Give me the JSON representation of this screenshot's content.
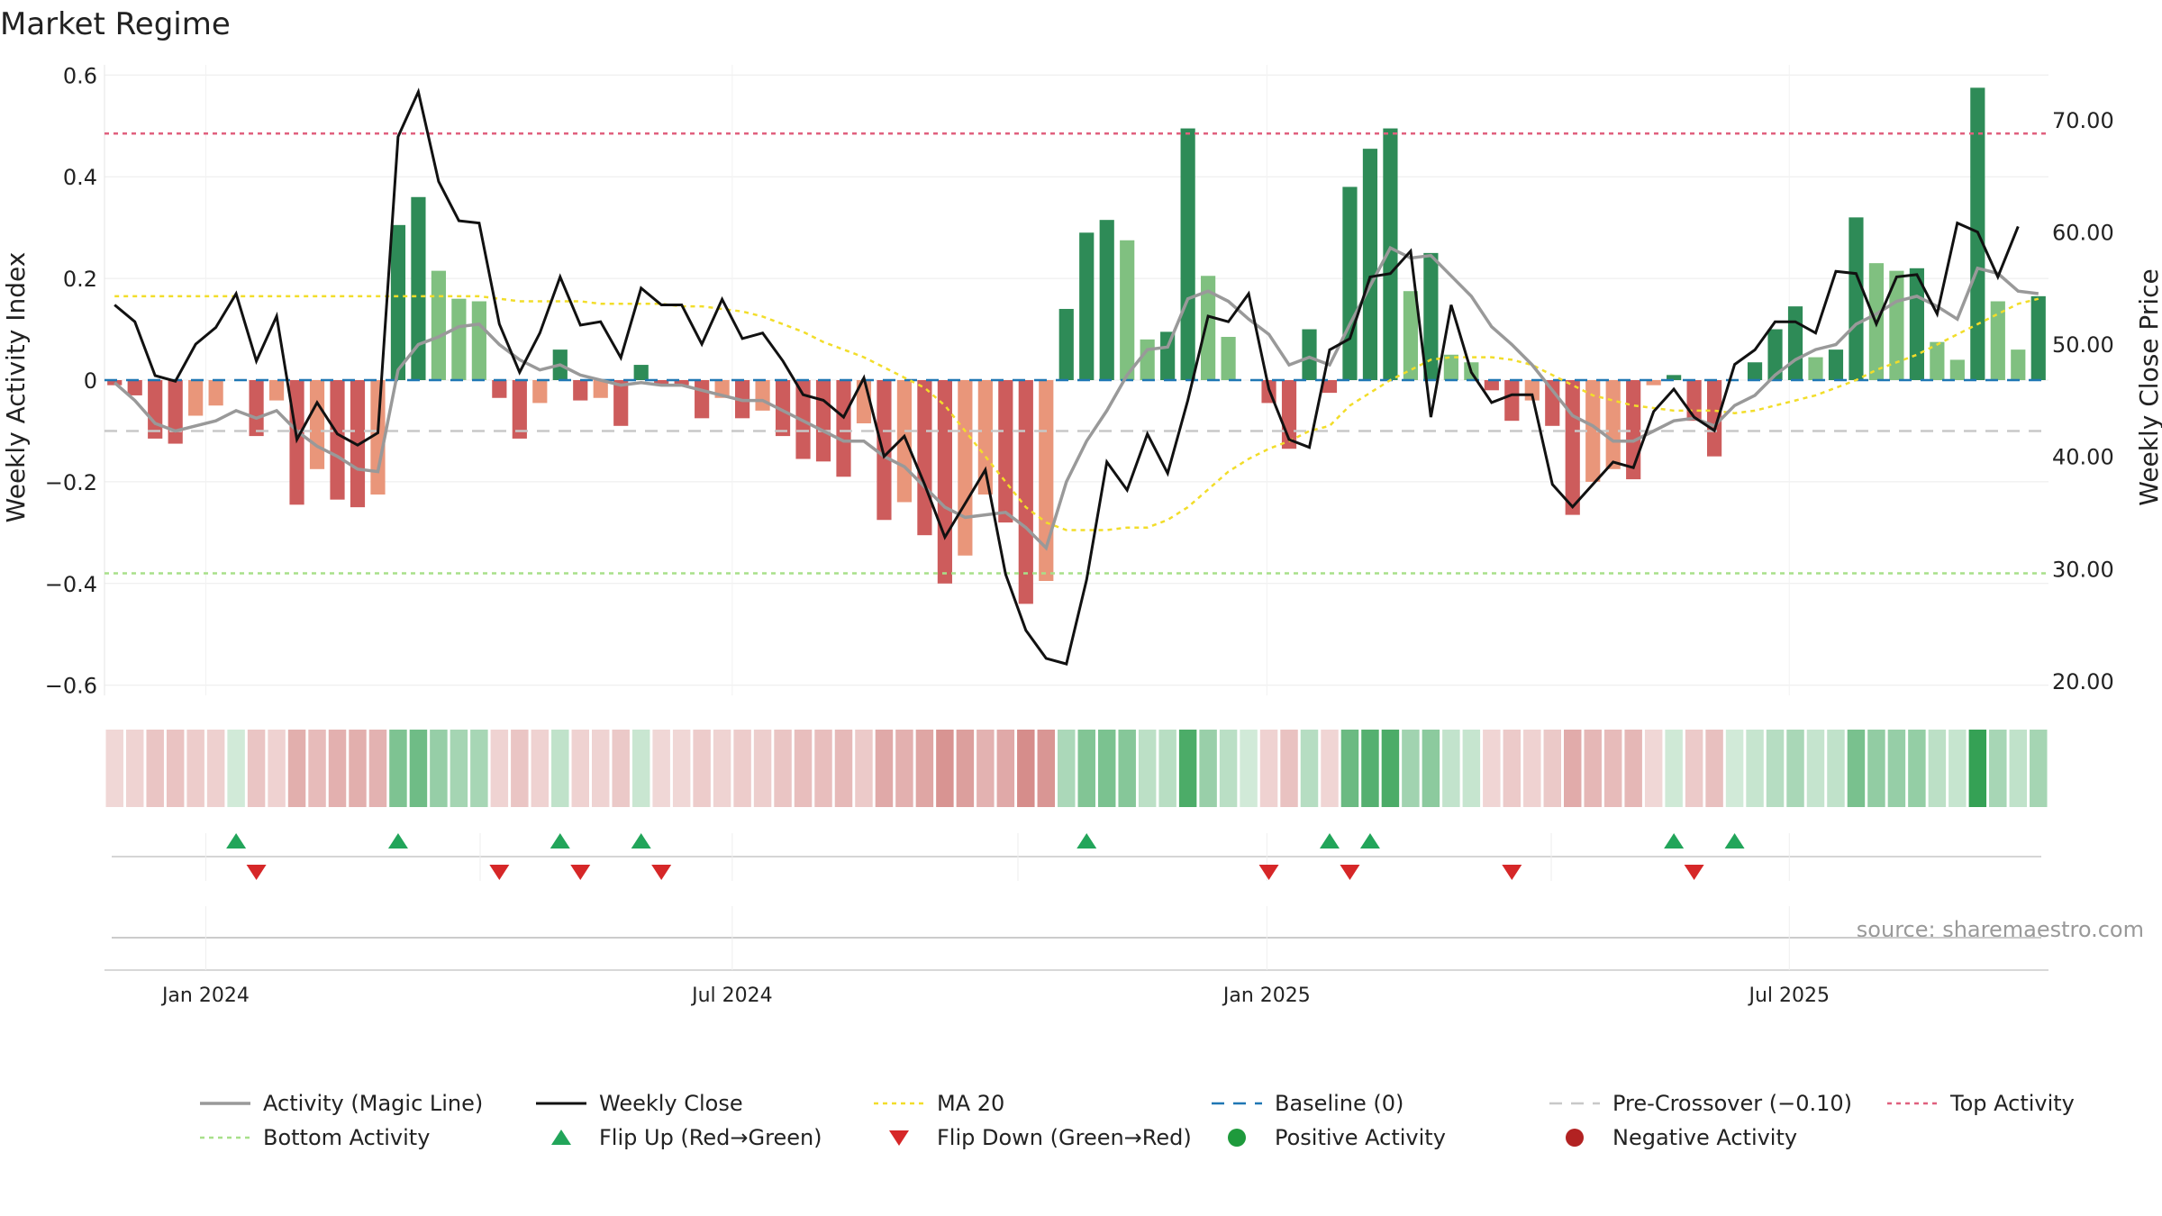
{
  "chart_data": {
    "type": "bar",
    "title": "Market Regime",
    "ylabel_left": "Weekly Activity Index",
    "ylabel_right": "Weekly Close Price",
    "source": "source: sharemaestro.com",
    "ylim_left": [
      -0.62,
      0.62
    ],
    "ylim_right": [
      18.7,
      74.9
    ],
    "yticks_left": [
      {
        "value": 0.6,
        "label": "0.6"
      },
      {
        "value": 0.4,
        "label": "0.4"
      },
      {
        "value": 0.2,
        "label": "0.2"
      },
      {
        "value": 0,
        "label": "0"
      },
      {
        "value": -0.2,
        "label": "−0.2"
      },
      {
        "value": -0.4,
        "label": "−0.4"
      },
      {
        "value": -0.6,
        "label": "−0.6"
      }
    ],
    "yticks_right": [
      {
        "value": 70,
        "label": "70.00"
      },
      {
        "value": 60,
        "label": "60.00"
      },
      {
        "value": 50,
        "label": "50.00"
      },
      {
        "value": 40,
        "label": "40.00"
      },
      {
        "value": 30,
        "label": "30.00"
      },
      {
        "value": 20,
        "label": "20.00"
      }
    ],
    "xticks": [
      {
        "week": 5,
        "label": "Jan 2024"
      },
      {
        "week": 31,
        "label": "Jul 2024"
      },
      {
        "week": 57.4,
        "label": "Jan 2025"
      },
      {
        "week": 83.2,
        "label": "Jul 2025"
      }
    ],
    "reference_lines": {
      "top_activity": 0.485,
      "bottom_activity": -0.38,
      "baseline": 0,
      "pre_crossover": -0.1
    },
    "activity": [
      -0.01,
      -0.03,
      -0.115,
      -0.125,
      -0.07,
      -0.05,
      0,
      -0.11,
      -0.04,
      -0.245,
      -0.175,
      -0.235,
      -0.25,
      -0.225,
      0.305,
      0.36,
      0.215,
      0.16,
      0.155,
      -0.035,
      -0.115,
      -0.045,
      0.06,
      -0.04,
      -0.035,
      -0.09,
      0.03,
      -0.01,
      -0.01,
      -0.075,
      -0.035,
      -0.075,
      -0.06,
      -0.11,
      -0.155,
      -0.16,
      -0.19,
      -0.085,
      -0.275,
      -0.24,
      -0.305,
      -0.4,
      -0.345,
      -0.225,
      -0.28,
      -0.44,
      -0.395,
      0.14,
      0.29,
      0.315,
      0.275,
      0.08,
      0.095,
      0.495,
      0.205,
      0.085,
      0,
      -0.045,
      -0.135,
      0.1,
      -0.025,
      0.38,
      0.455,
      0.495,
      0.175,
      0.25,
      0.05,
      0.035,
      -0.02,
      -0.08,
      -0.04,
      -0.09,
      -0.265,
      -0.2,
      -0.175,
      -0.195,
      -0.01,
      0.01,
      -0.08,
      -0.15,
      0,
      0.035,
      0.1,
      0.145,
      0.045,
      0.06,
      0.32,
      0.23,
      0.215,
      0.22,
      0.075,
      0.04,
      0.575,
      0.155,
      0.06,
      0.165
    ],
    "magic_line": [
      -0.005,
      -0.04,
      -0.085,
      -0.1,
      -0.09,
      -0.08,
      -0.06,
      -0.075,
      -0.06,
      -0.1,
      -0.13,
      -0.15,
      -0.175,
      -0.18,
      0.02,
      0.07,
      0.085,
      0.105,
      0.11,
      0.07,
      0.04,
      0.02,
      0.03,
      0.01,
      0,
      -0.01,
      -0.005,
      -0.01,
      -0.01,
      -0.02,
      -0.03,
      -0.04,
      -0.04,
      -0.06,
      -0.08,
      -0.1,
      -0.12,
      -0.12,
      -0.15,
      -0.17,
      -0.21,
      -0.25,
      -0.27,
      -0.265,
      -0.26,
      -0.29,
      -0.33,
      -0.2,
      -0.12,
      -0.06,
      0.01,
      0.06,
      0.065,
      0.16,
      0.175,
      0.155,
      0.12,
      0.09,
      0.03,
      0.045,
      0.03,
      0.11,
      0.185,
      0.26,
      0.24,
      0.245,
      0.205,
      0.165,
      0.105,
      0.07,
      0.03,
      -0.02,
      -0.07,
      -0.09,
      -0.12,
      -0.12,
      -0.1,
      -0.08,
      -0.075,
      -0.09,
      -0.05,
      -0.03,
      0.01,
      0.04,
      0.06,
      0.07,
      0.11,
      0.13,
      0.155,
      0.165,
      0.145,
      0.12,
      0.22,
      0.21,
      0.175,
      0.17
    ],
    "weekly_close": [
      53.5,
      52,
      47.2,
      46.7,
      50,
      51.5,
      54.5,
      48.5,
      52.5,
      41.5,
      44.8,
      42,
      41,
      42.1,
      68.5,
      72.5,
      64.5,
      61,
      60.8,
      51.8,
      47.5,
      51,
      56,
      51.7,
      52,
      48.8,
      55,
      53.5,
      53.5,
      50,
      54,
      50.5,
      51,
      48.5,
      45.5,
      45,
      43.5,
      47,
      40,
      41.8,
      37.5,
      32.8,
      35.8,
      38.8,
      29.5,
      24.5,
      22,
      21.5,
      29,
      39.5,
      37,
      42,
      38.5,
      45,
      52.5,
      52,
      54.5,
      46,
      41.5,
      40.8,
      49.5,
      50.5,
      56,
      56.3,
      58.3,
      43.5,
      53.5,
      47.5,
      44.8,
      45.5,
      45.5,
      37.5,
      35.5,
      37.5,
      39.5,
      39,
      44,
      46,
      43.5,
      42.3,
      48.2,
      49.5,
      52,
      52,
      51,
      56.5,
      56.3,
      51.8,
      56,
      56.2,
      52.7,
      60.8,
      60,
      56,
      60.5
    ],
    "ma20": [
      0.165,
      0.165,
      0.165,
      0.165,
      0.165,
      0.165,
      0.165,
      0.165,
      0.165,
      0.165,
      0.165,
      0.165,
      0.165,
      0.165,
      0.165,
      0.165,
      0.165,
      0.165,
      0.165,
      0.16,
      0.155,
      0.155,
      0.155,
      0.155,
      0.15,
      0.15,
      0.15,
      0.15,
      0.145,
      0.145,
      0.14,
      0.135,
      0.125,
      0.11,
      0.095,
      0.075,
      0.06,
      0.045,
      0.025,
      0.005,
      -0.015,
      -0.05,
      -0.1,
      -0.15,
      -0.2,
      -0.25,
      -0.28,
      -0.295,
      -0.295,
      -0.295,
      -0.29,
      -0.29,
      -0.275,
      -0.25,
      -0.215,
      -0.18,
      -0.155,
      -0.135,
      -0.12,
      -0.1,
      -0.09,
      -0.05,
      -0.025,
      0,
      0.02,
      0.04,
      0.045,
      0.045,
      0.045,
      0.04,
      0.03,
      0.01,
      -0.01,
      -0.03,
      -0.04,
      -0.05,
      -0.055,
      -0.06,
      -0.06,
      -0.06,
      -0.065,
      -0.06,
      -0.05,
      -0.04,
      -0.03,
      -0.015,
      0,
      0.02,
      0.035,
      0.05,
      0.07,
      0.09,
      0.11,
      0.13,
      0.15,
      0.16
    ],
    "flip_up_weeks": [
      6,
      14,
      22,
      26,
      48,
      60,
      62,
      77,
      80
    ],
    "flip_down_weeks": [
      7,
      19,
      23,
      27,
      57,
      61,
      69,
      78
    ],
    "legend": [
      {
        "key": "magic",
        "label": "Activity (Magic Line)"
      },
      {
        "key": "close",
        "label": "Weekly Close"
      },
      {
        "key": "ma20",
        "label": "MA 20"
      },
      {
        "key": "baseline",
        "label": "Baseline (0)"
      },
      {
        "key": "precross",
        "label": "Pre-Crossover (−0.10)"
      },
      {
        "key": "top",
        "label": "Top Activity"
      },
      {
        "key": "bottom",
        "label": "Bottom Activity"
      },
      {
        "key": "flipup",
        "label": "Flip Up (Red→Green)"
      },
      {
        "key": "flipdown",
        "label": "Flip Down (Green→Red)"
      },
      {
        "key": "pos",
        "label": "Positive Activity"
      },
      {
        "key": "neg",
        "label": "Negative Activity"
      }
    ],
    "colors": {
      "pos_strong": "#2e8b57",
      "pos_weak": "#80c080",
      "neg_strong": "#cd5c5c",
      "neg_weak": "#e9967a",
      "magic_line": "#999999",
      "weekly_close": "#111111",
      "ma20": "#f2dd2a",
      "baseline": "#1f77b4",
      "pre_crossover": "#c8c8c8",
      "top_activity": "#e0607e",
      "bottom_activity": "#a8e08a",
      "flip_up": "#22a55a",
      "flip_down": "#d62728",
      "positive_dot": "#1e9a3c",
      "negative_dot": "#b22222"
    }
  }
}
